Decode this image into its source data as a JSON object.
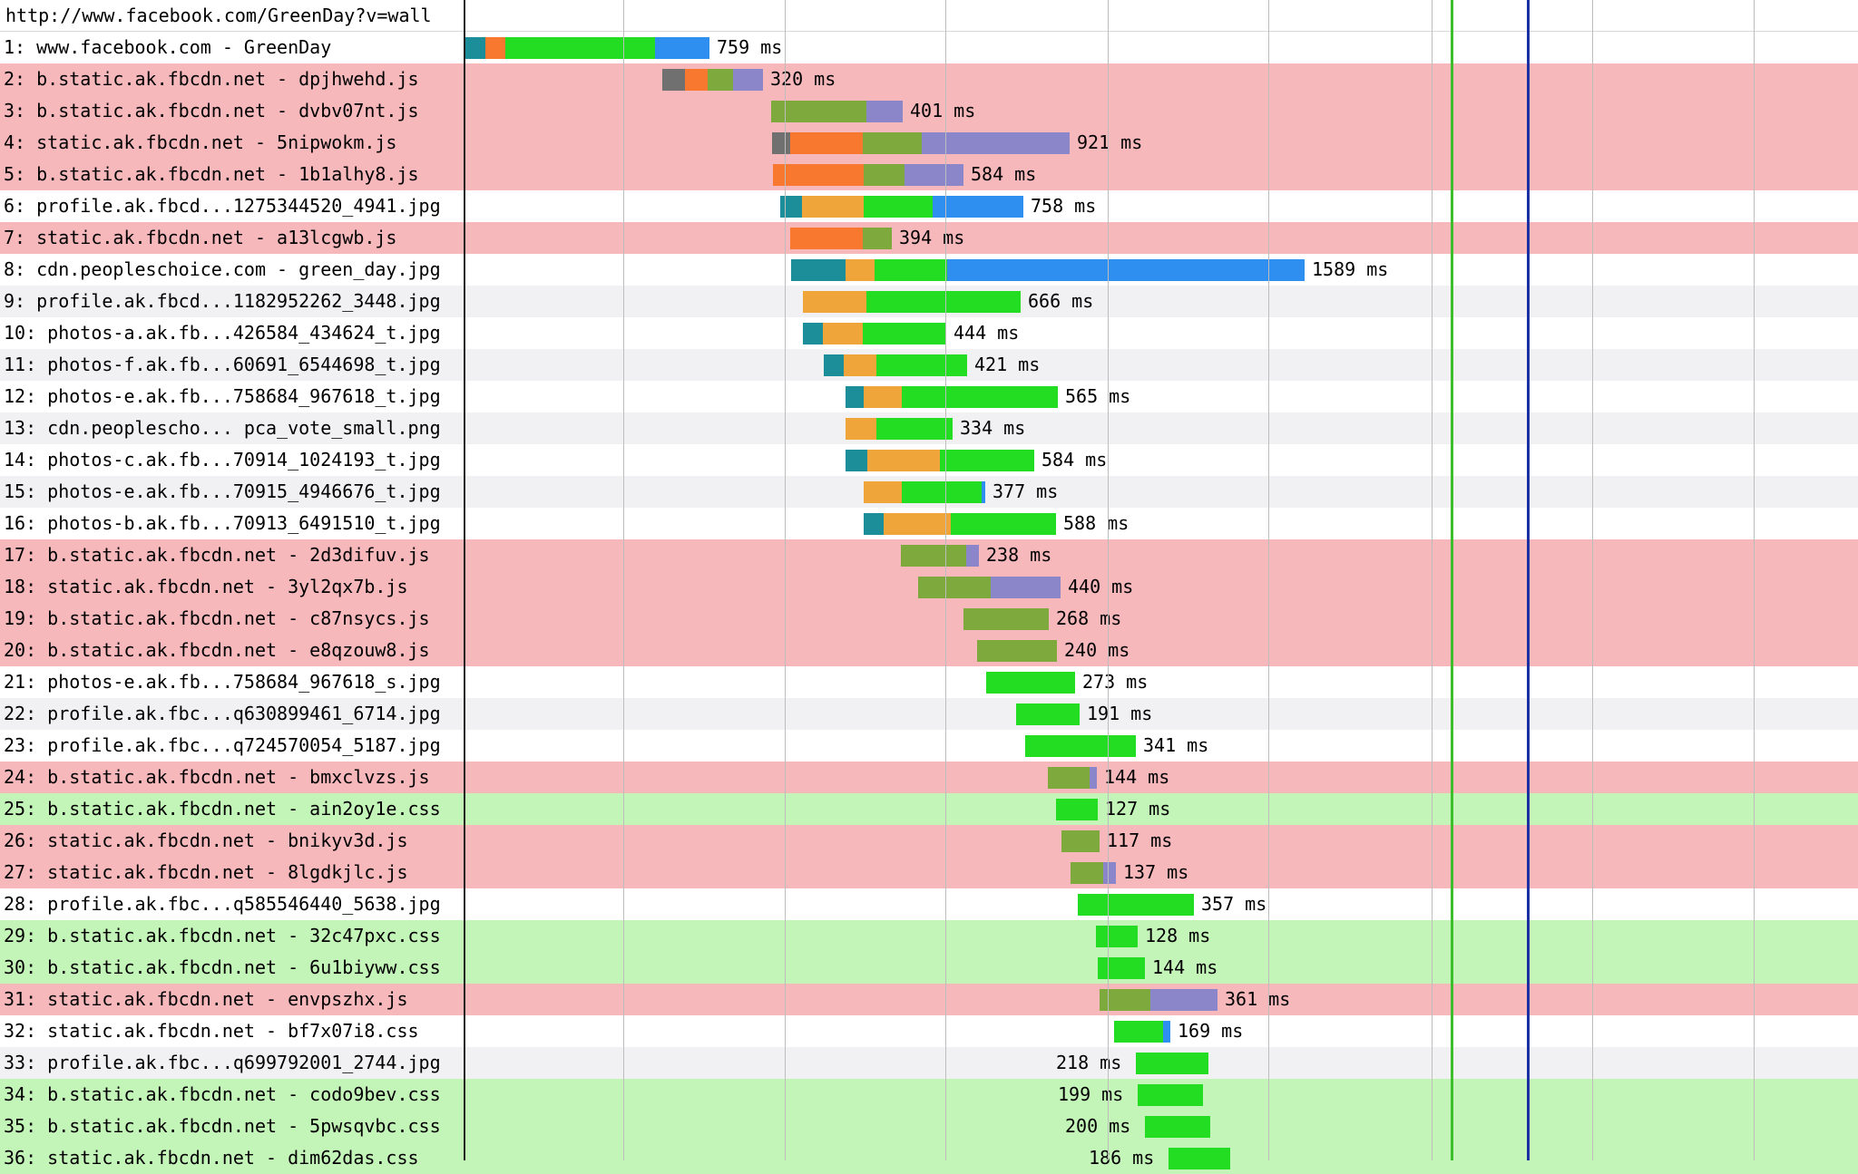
{
  "page": {
    "url": "http://www.facebook.com/GreenDay?v=wall"
  },
  "colors": {
    "dns": "#1b8e9a",
    "connect": "#f7782e",
    "ssl": "#f0a53a",
    "js_wait": "#7ea93c",
    "js_download": "#8b86c9",
    "wait": "#22dd22",
    "download": "#2e8ff0",
    "marker_start_render": "#3cbf2a",
    "marker_doc_complete": "#1c2fa3",
    "row_js": "#f7b8bb",
    "row_css": "#c4f5b8",
    "row_default": "#f1f1f3"
  },
  "requests": [
    {
      "label": "1: www.facebook.com - GreenDay",
      "duration": "759 ms",
      "bg": "white",
      "segments": [
        [
          "dns",
          22
        ],
        [
          "connect",
          22
        ],
        [
          "wait",
          165
        ],
        [
          "download",
          60
        ]
      ],
      "start": 513,
      "label_after": true
    },
    {
      "label": "2: b.static.ak.fbcdn.net - dpjhwehd.js",
      "duration": "320 ms",
      "bg": "red",
      "segments": [
        [
          "gray",
          25
        ],
        [
          "connect",
          25
        ],
        [
          "js_wait",
          28
        ],
        [
          "js_download",
          33
        ]
      ],
      "start": 730,
      "label_after": true
    },
    {
      "label": "3: b.static.ak.fbcdn.net - dvbv07nt.js",
      "duration": "401 ms",
      "bg": "red",
      "segments": [
        [
          "js_wait",
          105
        ],
        [
          "js_download",
          40
        ]
      ],
      "start": 850,
      "label_after": true
    },
    {
      "label": "4: static.ak.fbcdn.net - 5nipwokm.js",
      "duration": "921 ms",
      "bg": "red",
      "segments": [
        [
          "gray",
          20
        ],
        [
          "connect",
          80
        ],
        [
          "js_wait",
          65
        ],
        [
          "js_download",
          163
        ]
      ],
      "start": 851,
      "label_after": true
    },
    {
      "label": "5: b.static.ak.fbcdn.net - 1b1alhy8.js",
      "duration": "584 ms",
      "bg": "red",
      "segments": [
        [
          "connect",
          100
        ],
        [
          "js_wait",
          45
        ],
        [
          "js_download",
          65
        ]
      ],
      "start": 852,
      "label_after": true
    },
    {
      "label": "6: profile.ak.fbcd...1275344520_4941.jpg",
      "duration": "758 ms",
      "bg": "white",
      "segments": [
        [
          "dns",
          24
        ],
        [
          "ssl",
          68
        ],
        [
          "wait",
          76
        ],
        [
          "download",
          100
        ]
      ],
      "start": 860,
      "label_after": true
    },
    {
      "label": "7: static.ak.fbcdn.net - a13lcgwb.js",
      "duration": "394 ms",
      "bg": "red",
      "segments": [
        [
          "connect",
          80
        ],
        [
          "js_wait",
          32
        ]
      ],
      "start": 871,
      "label_after": true
    },
    {
      "label": "8: cdn.peopleschoice.com - green_day.jpg",
      "duration": "1589 ms",
      "bg": "white",
      "segments": [
        [
          "dns",
          60
        ],
        [
          "ssl",
          32
        ],
        [
          "wait",
          80
        ],
        [
          "download",
          394
        ]
      ],
      "start": 872,
      "label_after": true
    },
    {
      "label": "9: profile.ak.fbcd...1182952262_3448.jpg",
      "duration": "666 ms",
      "bg": "grey",
      "segments": [
        [
          "ssl",
          70
        ],
        [
          "wait",
          170
        ]
      ],
      "start": 885,
      "label_after": true
    },
    {
      "label": "10: photos-a.ak.fb...426584_434624_t.jpg",
      "duration": "444 ms",
      "bg": "white",
      "segments": [
        [
          "dns",
          22
        ],
        [
          "ssl",
          44
        ],
        [
          "wait",
          92
        ]
      ],
      "start": 885,
      "label_after": true
    },
    {
      "label": "11: photos-f.ak.fb...60691_6544698_t.jpg",
      "duration": "421 ms",
      "bg": "grey",
      "segments": [
        [
          "dns",
          22
        ],
        [
          "ssl",
          36
        ],
        [
          "wait",
          100
        ]
      ],
      "start": 908,
      "label_after": true
    },
    {
      "label": "12: photos-e.ak.fb...758684_967618_t.jpg",
      "duration": "565 ms",
      "bg": "white",
      "segments": [
        [
          "dns",
          20
        ],
        [
          "ssl",
          42
        ],
        [
          "wait",
          172
        ]
      ],
      "start": 932,
      "label_after": true
    },
    {
      "label": "13: cdn.peoplescho... pca_vote_small.png",
      "duration": "334 ms",
      "bg": "grey",
      "segments": [
        [
          "ssl",
          34
        ],
        [
          "wait",
          84
        ]
      ],
      "start": 932,
      "label_after": true
    },
    {
      "label": "14: photos-c.ak.fb...70914_1024193_t.jpg",
      "duration": "584 ms",
      "bg": "white",
      "segments": [
        [
          "dns",
          24
        ],
        [
          "ssl",
          80
        ],
        [
          "wait",
          104
        ]
      ],
      "start": 932,
      "label_after": true
    },
    {
      "label": "15: photos-e.ak.fb...70915_4946676_t.jpg",
      "duration": "377 ms",
      "bg": "grey",
      "segments": [
        [
          "ssl",
          42
        ],
        [
          "wait",
          88
        ],
        [
          "download",
          4
        ]
      ],
      "start": 952,
      "label_after": true
    },
    {
      "label": "16: photos-b.ak.fb...70913_6491510_t.jpg",
      "duration": "588 ms",
      "bg": "white",
      "segments": [
        [
          "dns",
          22
        ],
        [
          "ssl",
          74
        ],
        [
          "wait",
          116
        ]
      ],
      "start": 952,
      "label_after": true
    },
    {
      "label": "17: b.static.ak.fbcdn.net - 2d3difuv.js",
      "duration": "238 ms",
      "bg": "red",
      "segments": [
        [
          "js_wait",
          72
        ],
        [
          "js_download",
          14
        ]
      ],
      "start": 993,
      "label_after": true
    },
    {
      "label": "18: static.ak.fbcdn.net - 3yl2qx7b.js",
      "duration": "440 ms",
      "bg": "red",
      "segments": [
        [
          "js_wait",
          80
        ],
        [
          "js_download",
          77
        ]
      ],
      "start": 1012,
      "label_after": true
    },
    {
      "label": "19: b.static.ak.fbcdn.net - c87nsycs.js",
      "duration": "268 ms",
      "bg": "red",
      "segments": [
        [
          "js_wait",
          94
        ]
      ],
      "start": 1062,
      "label_after": true
    },
    {
      "label": "20: b.static.ak.fbcdn.net - e8qzouw8.js",
      "duration": "240 ms",
      "bg": "red",
      "segments": [
        [
          "js_wait",
          88
        ]
      ],
      "start": 1077,
      "label_after": true
    },
    {
      "label": "21: photos-e.ak.fb...758684_967618_s.jpg",
      "duration": "273 ms",
      "bg": "white",
      "segments": [
        [
          "wait",
          98
        ]
      ],
      "start": 1087,
      "label_after": true
    },
    {
      "label": "22: profile.ak.fbc...q630899461_6714.jpg",
      "duration": "191 ms",
      "bg": "grey",
      "segments": [
        [
          "wait",
          70
        ]
      ],
      "start": 1120,
      "label_after": true
    },
    {
      "label": "23: profile.ak.fbc...q724570054_5187.jpg",
      "duration": "341 ms",
      "bg": "white",
      "segments": [
        [
          "wait",
          122
        ]
      ],
      "start": 1130,
      "label_after": true
    },
    {
      "label": "24: b.static.ak.fbcdn.net - bmxclvzs.js",
      "duration": "144 ms",
      "bg": "red",
      "segments": [
        [
          "js_wait",
          46
        ],
        [
          "js_download",
          8
        ]
      ],
      "start": 1155,
      "label_after": true
    },
    {
      "label": "25: b.static.ak.fbcdn.net - ain2oy1e.css",
      "duration": "127 ms",
      "bg": "green",
      "segments": [
        [
          "wait",
          46
        ]
      ],
      "start": 1164,
      "label_after": true
    },
    {
      "label": "26: static.ak.fbcdn.net - bnikyv3d.js",
      "duration": "117 ms",
      "bg": "red",
      "segments": [
        [
          "js_wait",
          42
        ]
      ],
      "start": 1170,
      "label_after": true
    },
    {
      "label": "27: static.ak.fbcdn.net - 8lgdkjlc.js",
      "duration": "137 ms",
      "bg": "red",
      "segments": [
        [
          "js_wait",
          36
        ],
        [
          "js_download",
          14
        ]
      ],
      "start": 1180,
      "label_after": true
    },
    {
      "label": "28: profile.ak.fbc...q585546440_5638.jpg",
      "duration": "357 ms",
      "bg": "white",
      "segments": [
        [
          "wait",
          128
        ]
      ],
      "start": 1188,
      "label_after": true
    },
    {
      "label": "29: b.static.ak.fbcdn.net - 32c47pxc.css",
      "duration": "128 ms",
      "bg": "green",
      "segments": [
        [
          "wait",
          46
        ]
      ],
      "start": 1208,
      "label_after": true
    },
    {
      "label": "30: b.static.ak.fbcdn.net - 6u1biyww.css",
      "duration": "144 ms",
      "bg": "green",
      "segments": [
        [
          "wait",
          52
        ]
      ],
      "start": 1210,
      "label_after": true
    },
    {
      "label": "31: static.ak.fbcdn.net - envpszhx.js",
      "duration": "361 ms",
      "bg": "red",
      "segments": [
        [
          "js_wait",
          56
        ],
        [
          "js_download",
          74
        ]
      ],
      "start": 1212,
      "label_after": true
    },
    {
      "label": "32: static.ak.fbcdn.net - bf7x07i8.css",
      "duration": "169 ms",
      "bg": "white",
      "segments": [
        [
          "wait",
          54
        ],
        [
          "download",
          8
        ]
      ],
      "start": 1228,
      "label_after": true
    },
    {
      "label": "33: profile.ak.fbc...q699792001_2744.jpg",
      "duration": "218 ms",
      "bg": "grey",
      "segments": [
        [
          "wait",
          80
        ]
      ],
      "start": 1252,
      "label_after": false
    },
    {
      "label": "34: b.static.ak.fbcdn.net - codo9bev.css",
      "duration": "199 ms",
      "bg": "green",
      "segments": [
        [
          "wait",
          72
        ]
      ],
      "start": 1254,
      "label_after": false
    },
    {
      "label": "35: b.static.ak.fbcdn.net - 5pwsqvbc.css",
      "duration": "200 ms",
      "bg": "green",
      "segments": [
        [
          "wait",
          72
        ]
      ],
      "start": 1262,
      "label_after": false
    },
    {
      "label": "36: static.ak.fbcdn.net - dim62das.css",
      "duration": "186 ms",
      "bg": "green",
      "segments": [
        [
          "wait",
          68
        ]
      ],
      "start": 1288,
      "label_after": false
    }
  ]
}
